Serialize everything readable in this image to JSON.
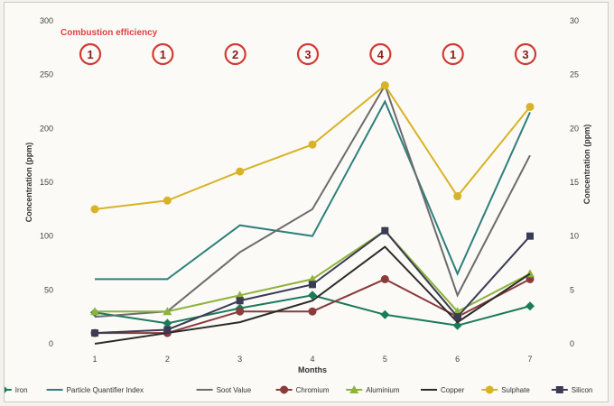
{
  "chart_data": {
    "type": "line",
    "title": "",
    "xlabel": "Months",
    "ylabel_left": "Concentration (ppm)",
    "ylabel_right": "Concentration (ppm)",
    "x": [
      1,
      2,
      3,
      4,
      5,
      6,
      7
    ],
    "ylim_left": [
      0,
      300
    ],
    "yticks_left": [
      "0",
      "50",
      "100",
      "150",
      "200",
      "250",
      "300"
    ],
    "ylim_right": [
      0,
      30
    ],
    "yticks_right": [
      "0",
      "5",
      "10",
      "15",
      "20",
      "25",
      "30"
    ],
    "annotation": "Combustion efficiency",
    "stage_numbers": [
      "1",
      "1",
      "2",
      "3",
      "4",
      "1",
      "3"
    ],
    "legend_position": "bottom",
    "series": [
      {
        "name": "Iron",
        "color": "#1b7a5a",
        "marker": "diamond",
        "axis": "right",
        "values": [
          2.9,
          1.9,
          3.3,
          4.5,
          2.7,
          1.7,
          3.5
        ]
      },
      {
        "name": "Particle Quantifier Index",
        "color": "#2e7f7c",
        "marker": "none",
        "axis": "left",
        "values": [
          60,
          60,
          110,
          100,
          225,
          65,
          215
        ]
      },
      {
        "name": "Soot Value",
        "color": "#6b6b6b",
        "marker": "none",
        "axis": "left",
        "values": [
          25,
          30,
          85,
          125,
          240,
          45,
          175
        ]
      },
      {
        "name": "Chromium",
        "color": "#8a3b3b",
        "marker": "circle",
        "axis": "right",
        "values": [
          1.0,
          1.0,
          3.0,
          3.0,
          6.0,
          2.5,
          6.0
        ]
      },
      {
        "name": "Aluminium",
        "color": "#8db33a",
        "marker": "triangle",
        "axis": "right",
        "values": [
          3.0,
          3.0,
          4.5,
          6.0,
          10.5,
          3.0,
          6.5
        ]
      },
      {
        "name": "Copper",
        "color": "#2b2b2b",
        "marker": "none",
        "axis": "right",
        "values": [
          0.0,
          1.0,
          2.0,
          4.0,
          9.0,
          2.0,
          6.5
        ]
      },
      {
        "name": "Sulphate",
        "color": "#d8b326",
        "marker": "circle",
        "axis": "left",
        "values": [
          125,
          133,
          160,
          185,
          240,
          137,
          220
        ]
      },
      {
        "name": "Silicon",
        "color": "#3b3b55",
        "marker": "square",
        "axis": "right",
        "values": [
          1.0,
          1.3,
          4.0,
          5.5,
          10.5,
          2.5,
          10.0
        ]
      }
    ]
  }
}
